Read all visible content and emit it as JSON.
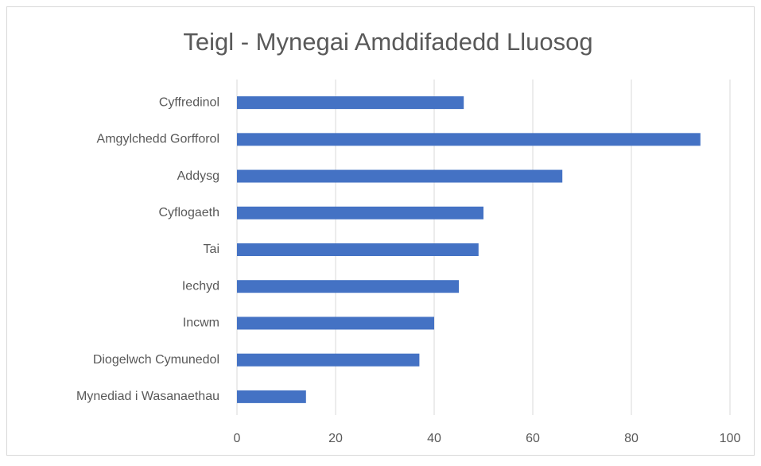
{
  "chart_data": {
    "type": "bar",
    "orientation": "horizontal",
    "title": "Teigl - Mynegai Amddifadedd Lluosog",
    "categories": [
      "Cyffredinol",
      "Amgylchedd Gorfforol",
      "Addysg",
      "Cyflogaeth",
      "Tai",
      "Iechyd",
      "Incwm",
      "Diogelwch Cymunedol",
      "Mynediad i Wasanaethau"
    ],
    "values": [
      46,
      94,
      66,
      50,
      49,
      45,
      40,
      37,
      14
    ],
    "color": "#4472c4",
    "xlim": [
      0,
      100
    ],
    "xticks": [
      0,
      20,
      40,
      60,
      80,
      100
    ],
    "grid": true
  }
}
